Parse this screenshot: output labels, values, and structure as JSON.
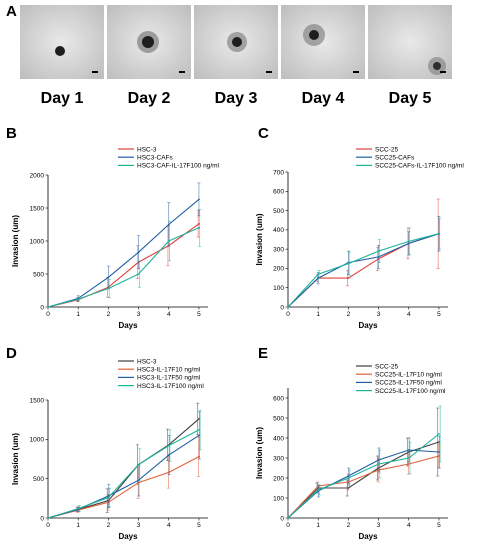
{
  "panel_a": {
    "letter": "A",
    "days": [
      "Day 1",
      "Day 2",
      "Day 3",
      "Day 4",
      "Day 5"
    ]
  },
  "chart_data": [
    {
      "panel": "B",
      "type": "line",
      "xlabel": "Days",
      "ylabel": "Invasion (um)",
      "x": [
        0,
        1,
        2,
        3,
        4,
        5
      ],
      "xlim": [
        0,
        5.3
      ],
      "ylim": [
        0,
        2000
      ],
      "yticks": [
        0,
        500,
        1000,
        1500,
        2000
      ],
      "legend_position": "top",
      "series": [
        {
          "name": "HSC-3",
          "color": "#e0403a",
          "values": [
            0,
            110,
            300,
            680,
            930,
            1260
          ],
          "err": [
            0,
            30,
            150,
            250,
            300,
            200
          ]
        },
        {
          "name": "HSC3-CAFs",
          "color": "#1f5fa3",
          "values": [
            0,
            130,
            450,
            830,
            1250,
            1630
          ],
          "err": [
            0,
            40,
            170,
            250,
            330,
            250
          ]
        },
        {
          "name": "HSC3-CAF-IL-17F100 ng/ml",
          "color": "#1db39a",
          "values": [
            0,
            120,
            280,
            500,
            1000,
            1200
          ],
          "err": [
            0,
            30,
            140,
            200,
            300,
            280
          ]
        }
      ]
    },
    {
      "panel": "C",
      "type": "line",
      "xlabel": "Days",
      "ylabel": "Invasion (um)",
      "x": [
        0,
        1,
        2,
        3,
        4,
        5
      ],
      "xlim": [
        0,
        5.3
      ],
      "ylim": [
        0,
        700
      ],
      "yticks": [
        0,
        100,
        200,
        300,
        400,
        500,
        600,
        700
      ],
      "legend_position": "top",
      "series": [
        {
          "name": "SCC-25",
          "color": "#e0403a",
          "values": [
            0,
            150,
            150,
            250,
            330,
            380
          ],
          "err": [
            0,
            20,
            40,
            60,
            80,
            180
          ]
        },
        {
          "name": "SCC25-CAFs",
          "color": "#1f5fa3",
          "values": [
            0,
            150,
            230,
            260,
            330,
            380
          ],
          "err": [
            0,
            30,
            60,
            60,
            60,
            90
          ]
        },
        {
          "name": "SCC25-CAFs-IL-17F100 ng/ml",
          "color": "#1db39a",
          "values": [
            0,
            170,
            225,
            290,
            340,
            380
          ],
          "err": [
            0,
            20,
            60,
            60,
            70,
            80
          ]
        }
      ]
    },
    {
      "panel": "D",
      "type": "line",
      "xlabel": "Days",
      "ylabel": "Invasion (um)",
      "x": [
        0,
        1,
        2,
        3,
        4,
        5
      ],
      "xlim": [
        0,
        5.3
      ],
      "ylim": [
        0,
        1500
      ],
      "yticks": [
        0,
        500,
        1000,
        1500
      ],
      "legend_position": "top",
      "series": [
        {
          "name": "HSC-3",
          "color": "#404040",
          "values": [
            0,
            110,
            220,
            680,
            930,
            1260
          ],
          "err": [
            0,
            30,
            150,
            250,
            200,
            200
          ]
        },
        {
          "name": "HSC3-IL-17F10 ng/ml",
          "color": "#e0603a",
          "values": [
            0,
            100,
            200,
            450,
            580,
            780
          ],
          "err": [
            0,
            30,
            100,
            200,
            200,
            250
          ]
        },
        {
          "name": "HSC3-IL-17F50 ng/ml",
          "color": "#1f5fa3",
          "values": [
            0,
            110,
            280,
            480,
            800,
            1050
          ],
          "err": [
            0,
            30,
            150,
            200,
            250,
            300
          ]
        },
        {
          "name": "HSC3-IL-17F100 ng/ml",
          "color": "#1db39a",
          "values": [
            0,
            120,
            260,
            680,
            920,
            1120
          ],
          "err": [
            0,
            40,
            120,
            200,
            200,
            250
          ]
        }
      ]
    },
    {
      "panel": "E",
      "type": "line",
      "xlabel": "Days",
      "ylabel": "Invasion (um)",
      "x": [
        0,
        1,
        2,
        3,
        4,
        5
      ],
      "xlim": [
        0,
        5.3
      ],
      "ylim": [
        0,
        650
      ],
      "yticks": [
        0,
        100,
        200,
        300,
        400,
        500,
        600
      ],
      "legend_position": "top",
      "series": [
        {
          "name": "SCC-25",
          "color": "#404040",
          "values": [
            0,
            150,
            150,
            250,
            330,
            380
          ],
          "err": [
            0,
            25,
            40,
            60,
            70,
            170
          ]
        },
        {
          "name": "SCC25-IL-17F10 ng/ml",
          "color": "#e0603a",
          "values": [
            0,
            160,
            180,
            240,
            270,
            310
          ],
          "err": [
            0,
            20,
            40,
            60,
            50,
            60
          ]
        },
        {
          "name": "SCC25-IL-17F50 ng/ml",
          "color": "#1f5fa3",
          "values": [
            0,
            135,
            210,
            290,
            340,
            330
          ],
          "err": [
            0,
            30,
            40,
            60,
            60,
            80
          ]
        },
        {
          "name": "SCC25-IL-17F100 ng/ml",
          "color": "#1db39a",
          "values": [
            0,
            140,
            200,
            270,
            300,
            420
          ],
          "err": [
            0,
            25,
            40,
            70,
            80,
            140
          ]
        }
      ]
    }
  ]
}
